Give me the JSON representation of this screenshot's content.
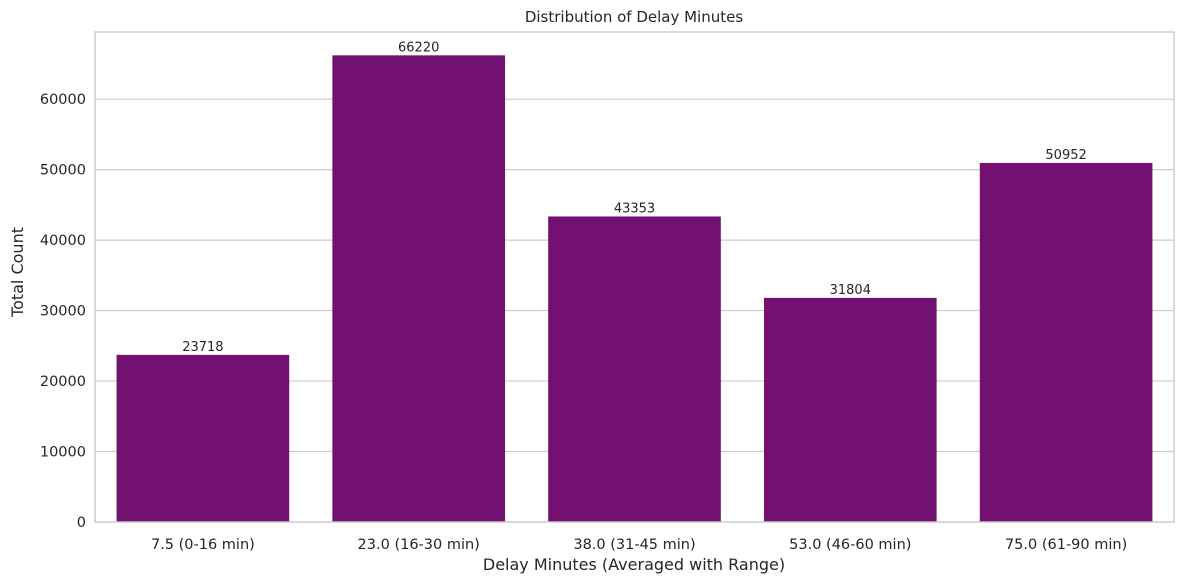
{
  "chart_data": {
    "type": "bar",
    "title": "Distribution of Delay Minutes",
    "xlabel": "Delay Minutes (Averaged with Range)",
    "ylabel": "Total Count",
    "categories": [
      "7.5 (0-16 min)",
      "23.0 (16-30 min)",
      "38.0 (31-45 min)",
      "53.0 (46-60 min)",
      "75.0 (61-90 min)"
    ],
    "values": [
      23718,
      66220,
      43353,
      31804,
      50952
    ],
    "data_labels": [
      "23718",
      "66220",
      "43353",
      "31804",
      "50952"
    ],
    "ylim": [
      0,
      69532
    ],
    "yticks": [
      0,
      10000,
      20000,
      30000,
      40000,
      50000,
      60000
    ],
    "ytick_labels": [
      "0",
      "10000",
      "20000",
      "30000",
      "40000",
      "50000",
      "60000"
    ],
    "grid": true,
    "bar_color": "#721170"
  }
}
